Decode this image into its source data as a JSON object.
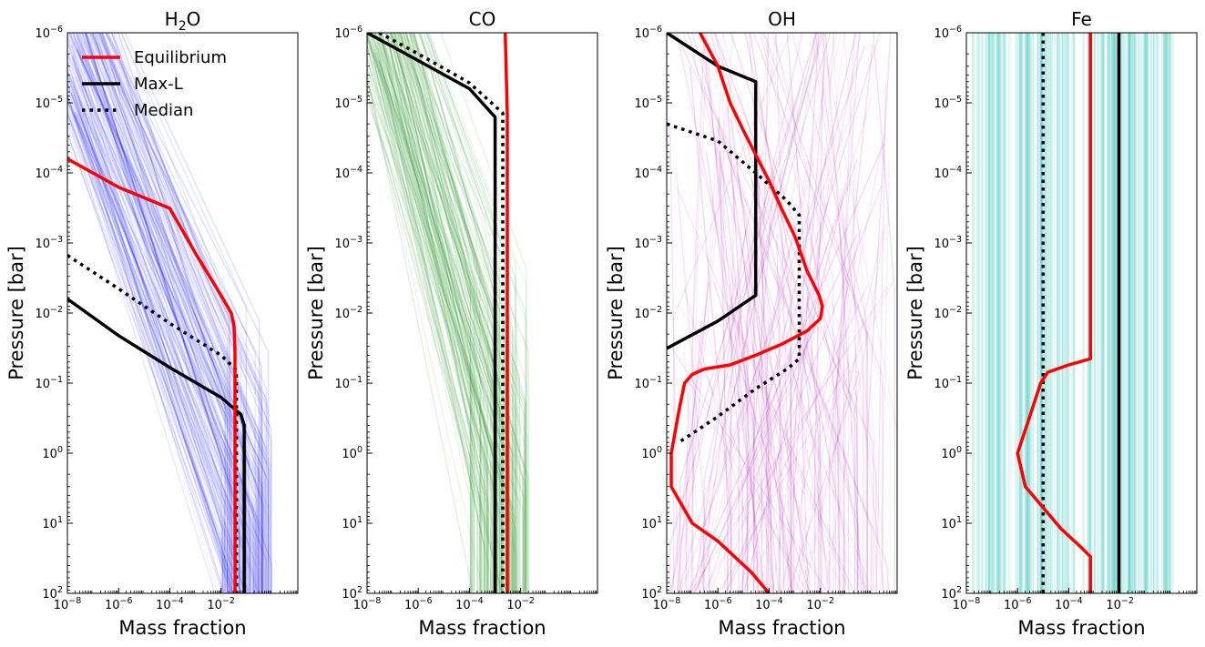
{
  "chart_data": [
    {
      "type": "line",
      "title": "H2O",
      "title_main": "H",
      "title_sub": "2",
      "title_tail": "O",
      "xlabel": "Mass fraction",
      "ylabel": "Pressure [bar]",
      "xscale": "log",
      "yscale": "log",
      "xlim": [
        1e-08,
        10
      ],
      "ylim": [
        100,
        1e-06
      ],
      "x_ticks": [
        "10^-8",
        "10^-6",
        "10^-4",
        "10^-2"
      ],
      "y_ticks": [
        "10^-6",
        "10^-5",
        "10^-4",
        "10^-3",
        "10^-2",
        "10^-1",
        "10^0",
        "10^1",
        "10^2"
      ],
      "sample_color": "#0000ff",
      "sample_spread": {
        "p_start_log": [
          -4.7,
          -1.8
        ],
        "x_top_log": [
          -8.5,
          -7.5
        ],
        "x_bottom_log": [
          -2.0,
          0.0
        ]
      },
      "legend": {
        "placement": "top-left",
        "entries": [
          "Equilibrium",
          "Max-L",
          "Median"
        ]
      },
      "series": [
        {
          "name": "Equilibrium",
          "color": "#ff0000",
          "style": "solid",
          "points": [
            [
              1e-08,
              6.3e-05
            ],
            [
              1e-06,
              0.00016
            ],
            [
              0.0001,
              0.00032
            ],
            [
              0.001,
              0.0014
            ],
            [
              0.01,
              0.0056
            ],
            [
              0.025,
              0.01
            ],
            [
              0.032,
              0.015
            ],
            [
              0.035,
              0.035
            ],
            [
              0.035,
              100
            ]
          ]
        },
        {
          "name": "Max-L",
          "color": "#000000",
          "style": "solid",
          "points": [
            [
              1e-08,
              0.0063
            ],
            [
              1e-06,
              0.021
            ],
            [
              0.0001,
              0.06
            ],
            [
              0.01,
              0.16
            ],
            [
              0.06,
              0.28
            ],
            [
              0.08,
              0.4
            ],
            [
              0.08,
              100
            ]
          ]
        },
        {
          "name": "Median",
          "color": "#000000",
          "style": "dotted",
          "points": [
            [
              1e-08,
              0.0015
            ],
            [
              1e-06,
              0.0045
            ],
            [
              0.0001,
              0.014
            ],
            [
              0.01,
              0.04
            ],
            [
              0.04,
              0.065
            ],
            [
              0.04,
              100
            ]
          ]
        }
      ]
    },
    {
      "type": "line",
      "title": "CO",
      "title_main": "CO",
      "title_sub": "",
      "title_tail": "",
      "xlabel": "Mass fraction",
      "ylabel": "Pressure [bar]",
      "xscale": "log",
      "yscale": "log",
      "xlim": [
        1e-08,
        10
      ],
      "ylim": [
        100,
        1e-06
      ],
      "x_ticks": [
        "10^-8",
        "10^-6",
        "10^-4",
        "10^-2"
      ],
      "y_ticks": [
        "10^-6",
        "10^-5",
        "10^-4",
        "10^-3",
        "10^-2",
        "10^-1",
        "10^0",
        "10^1",
        "10^2"
      ],
      "sample_color": "#008000",
      "sample_spread": {
        "p_start_log": [
          -5.8,
          -2.5
        ],
        "x_top_log": [
          -8.5,
          -7.5
        ],
        "x_bottom_log": [
          -4.0,
          -1.7
        ]
      },
      "legend": null,
      "series": [
        {
          "name": "Equilibrium",
          "color": "#ff0000",
          "style": "solid",
          "points": [
            [
              0.0025,
              1e-06
            ],
            [
              0.003,
              1.5e-05
            ],
            [
              0.003,
              100
            ]
          ]
        },
        {
          "name": "Max-L",
          "color": "#000000",
          "style": "solid",
          "points": [
            [
              1e-08,
              1e-06
            ],
            [
              1e-06,
              2.5e-06
            ],
            [
              0.0001,
              6.3e-06
            ],
            [
              0.001,
              1.6e-05
            ],
            [
              0.001,
              100
            ]
          ]
        },
        {
          "name": "Median",
          "color": "#000000",
          "style": "dotted",
          "points": [
            [
              3e-08,
              1e-06
            ],
            [
              1e-06,
              2e-06
            ],
            [
              0.0001,
              5.2e-06
            ],
            [
              0.002,
              1.4e-05
            ],
            [
              0.002,
              100
            ]
          ]
        }
      ]
    },
    {
      "type": "line",
      "title": "OH",
      "title_main": "OH",
      "title_sub": "",
      "title_tail": "",
      "xlabel": "Mass fraction",
      "ylabel": "Pressure [bar]",
      "xscale": "log",
      "yscale": "log",
      "xlim": [
        1e-08,
        10
      ],
      "ylim": [
        100,
        1e-06
      ],
      "x_ticks": [
        "10^-8",
        "10^-6",
        "10^-4",
        "10^-2"
      ],
      "y_ticks": [
        "10^-6",
        "10^-5",
        "10^-4",
        "10^-3",
        "10^-2",
        "10^-1",
        "10^0",
        "10^1",
        "10^2"
      ],
      "sample_color": "#aa00aa",
      "sample_spread": {
        "p_start_log": [
          -6.0,
          2.0
        ],
        "x_top_log": [
          -8.0,
          1.0
        ],
        "x_bottom_log": [
          -8.0,
          1.0
        ]
      },
      "legend": null,
      "series": [
        {
          "name": "Equilibrium",
          "color": "#ff0000",
          "style": "solid",
          "points": [
            [
              2e-07,
              1e-06
            ],
            [
              1e-06,
              3e-06
            ],
            [
              3e-06,
              1e-05
            ],
            [
              1e-05,
              2.5e-05
            ],
            [
              3e-05,
              5.5e-05
            ],
            [
              0.0001,
              0.00013
            ],
            [
              0.0003,
              0.00032
            ],
            [
              0.001,
              0.0008
            ],
            [
              0.003,
              0.0025
            ],
            [
              0.009,
              0.0056
            ],
            [
              0.012,
              0.008
            ],
            [
              0.01,
              0.012
            ],
            [
              0.003,
              0.018
            ],
            [
              0.0003,
              0.028
            ],
            [
              3e-05,
              0.04
            ],
            [
              3e-06,
              0.055
            ],
            [
              3e-07,
              0.063
            ],
            [
              1e-07,
              0.075
            ],
            [
              5e-08,
              0.1
            ],
            [
              3e-08,
              0.25
            ],
            [
              1.5e-08,
              1.0
            ],
            [
              1.5e-08,
              3.0
            ],
            [
              1e-07,
              10
            ],
            [
              1e-06,
              18
            ],
            [
              2e-05,
              50
            ],
            [
              0.0001,
              100
            ]
          ]
        },
        {
          "name": "Max-L",
          "color": "#000000",
          "style": "solid",
          "points": [
            [
              1e-08,
              1e-06
            ],
            [
              1e-06,
              3e-06
            ],
            [
              3e-05,
              5e-06
            ],
            [
              3e-05,
              0.0056
            ],
            [
              1e-06,
              0.013
            ],
            [
              1e-08,
              0.032
            ]
          ]
        },
        {
          "name": "Median",
          "color": "#000000",
          "style": "dotted",
          "points": [
            [
              1e-08,
              2e-05
            ],
            [
              1e-06,
              3.5e-05
            ],
            [
              3e-05,
              0.0001
            ],
            [
              0.0005,
              0.00025
            ],
            [
              0.0015,
              0.0004
            ],
            [
              0.0015,
              0.045
            ],
            [
              0.0005,
              0.063
            ],
            [
              3e-05,
              0.12
            ],
            [
              1e-06,
              0.3
            ],
            [
              3e-08,
              0.7
            ]
          ]
        }
      ]
    },
    {
      "type": "line",
      "title": "Fe",
      "title_main": "Fe",
      "title_sub": "",
      "title_tail": "",
      "xlabel": "Mass fraction",
      "ylabel": "Pressure [bar]",
      "xscale": "log",
      "yscale": "log",
      "xlim": [
        1e-08,
        10
      ],
      "ylim": [
        100,
        1e-06
      ],
      "x_ticks": [
        "10^-8",
        "10^-6",
        "10^-4",
        "10^-2"
      ],
      "y_ticks": [
        "10^-6",
        "10^-5",
        "10^-4",
        "10^-3",
        "10^-2",
        "10^-1",
        "10^0",
        "10^1",
        "10^2"
      ],
      "sample_color": "#48c9c0",
      "sample_spread": {
        "vertical_x_log": [
          -7.8,
          0.1
        ]
      },
      "legend": null,
      "series": [
        {
          "name": "Equilibrium",
          "color": "#ff0000",
          "style": "solid",
          "points": [
            [
              0.0007,
              1e-06
            ],
            [
              0.0007,
              0.045
            ],
            [
              0.0001,
              0.055
            ],
            [
              1.5e-05,
              0.07
            ],
            [
              8e-06,
              0.1
            ],
            [
              3e-06,
              0.3
            ],
            [
              1e-06,
              1.0
            ],
            [
              2e-06,
              3.0
            ],
            [
              1e-05,
              6.0
            ],
            [
              5e-05,
              12
            ],
            [
              0.0003,
              22
            ],
            [
              0.0007,
              30
            ],
            [
              0.0007,
              100
            ]
          ]
        },
        {
          "name": "Max-L",
          "color": "#000000",
          "style": "solid",
          "points": [
            [
              0.009,
              1e-06
            ],
            [
              0.009,
              100
            ]
          ]
        },
        {
          "name": "Median",
          "color": "#000000",
          "style": "dotted",
          "points": [
            [
              1e-05,
              1e-06
            ],
            [
              1e-05,
              100
            ]
          ]
        }
      ]
    }
  ]
}
